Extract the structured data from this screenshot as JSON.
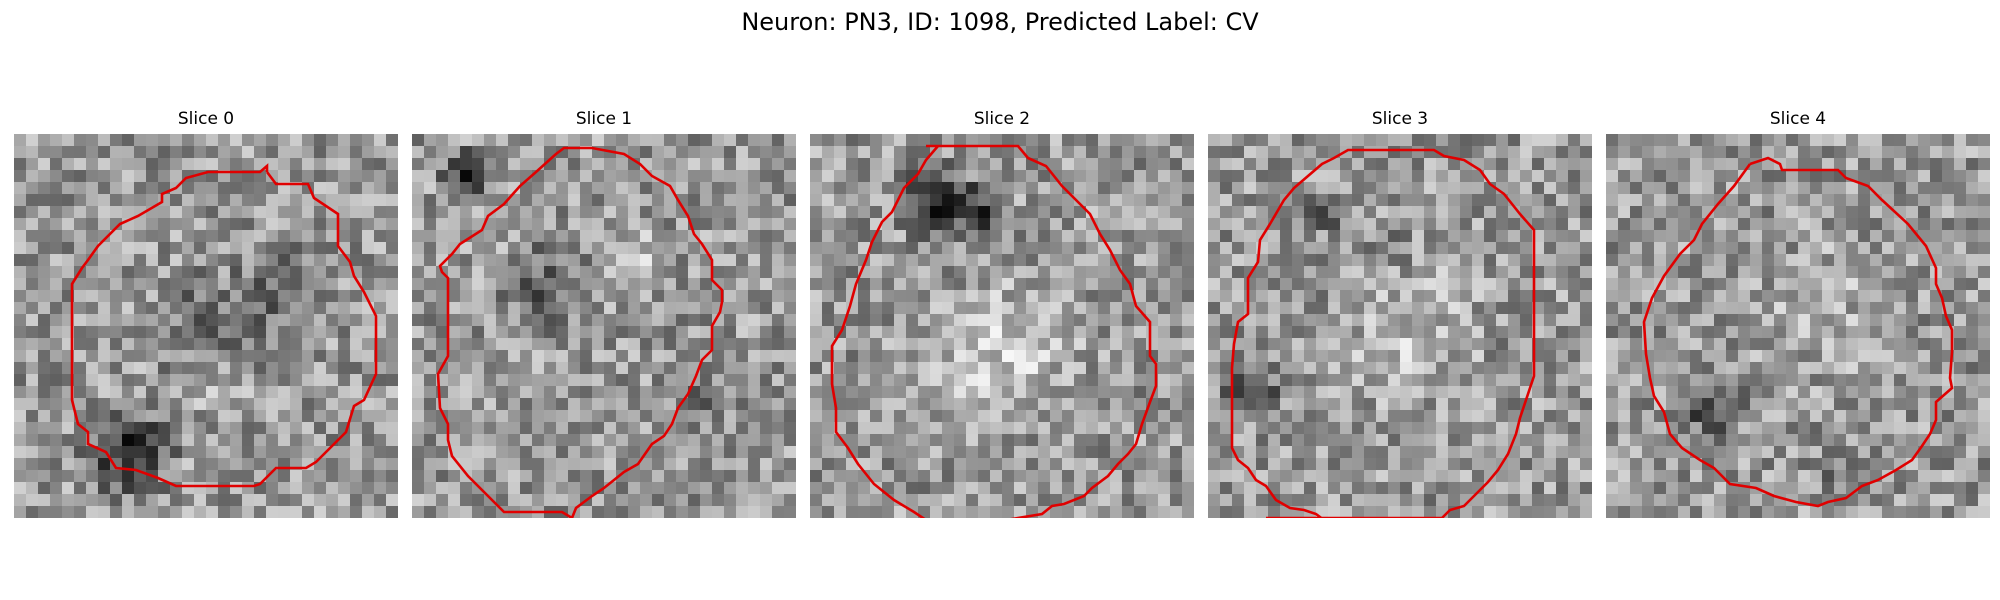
{
  "figure": {
    "title": "Neuron: PN3, ID: 1098, Predicted Label: CV",
    "panels": [
      {
        "label": "Slice 0",
        "cmap": "gray",
        "contour_color": "#e00000"
      },
      {
        "label": "Slice 1",
        "cmap": "gray",
        "contour_color": "#e00000"
      },
      {
        "label": "Slice 2",
        "cmap": "gray",
        "contour_color": "#e00000"
      },
      {
        "label": "Slice 3",
        "cmap": "gray",
        "contour_color": "#e00000"
      },
      {
        "label": "Slice 4",
        "cmap": "gray",
        "contour_color": "#e00000"
      }
    ]
  }
}
